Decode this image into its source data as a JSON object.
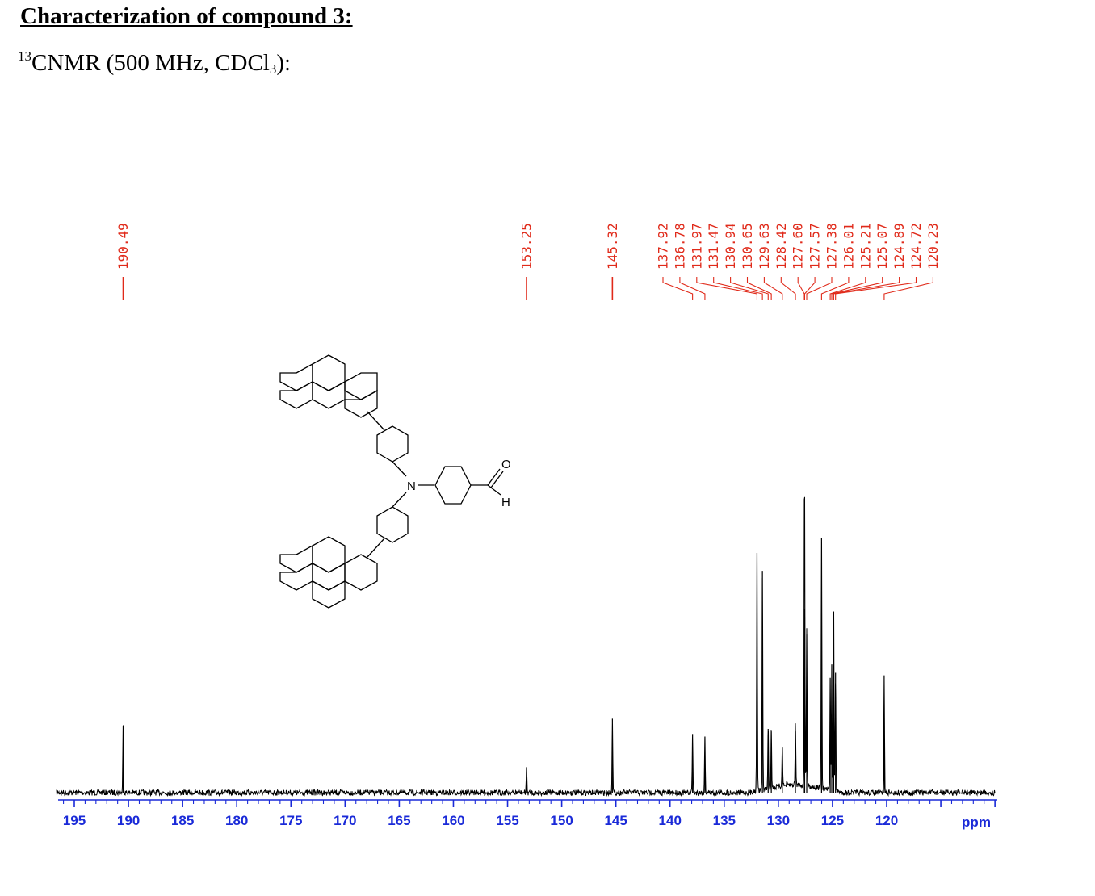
{
  "header": {
    "title": "Characterization of compound 3:",
    "nmr_prefix": "13",
    "nmr_main": "CNMR (500 MHz, CDCl",
    "nmr_sub": "3",
    "nmr_suffix": "):"
  },
  "molecule": {
    "atom_N": "N",
    "atom_O": "O",
    "atom_H": "H"
  },
  "colors": {
    "spectrum": "#000000",
    "peak_labels": "#e02a1a",
    "axis": "#1a2ad8"
  },
  "chart_data": {
    "type": "line",
    "title": "",
    "xlabel": "ppm",
    "ylabel": "",
    "x_axis_reversed": true,
    "xlim": [
      196,
      109
    ],
    "x_ticks": [
      195,
      190,
      185,
      180,
      175,
      170,
      165,
      160,
      155,
      150,
      145,
      140,
      135,
      130,
      125,
      120
    ],
    "x_tick_labels": [
      "195",
      "190",
      "185",
      "180",
      "175",
      "170",
      "165",
      "160",
      "155",
      "150",
      "145",
      "140",
      "135",
      "130",
      "125",
      "120"
    ],
    "unit_label": "ppm",
    "peak_label_strings": [
      "190.49",
      "153.25",
      "145.32",
      "137.92",
      "136.78",
      "131.97",
      "131.47",
      "130.94",
      "130.65",
      "129.63",
      "128.42",
      "127.60",
      "127.57",
      "127.38",
      "126.01",
      "125.21",
      "125.07",
      "124.89",
      "124.72",
      "120.23"
    ],
    "peaks": [
      {
        "ppm": 190.49,
        "intensity": 0.26
      },
      {
        "ppm": 153.25,
        "intensity": 0.1
      },
      {
        "ppm": 145.32,
        "intensity": 0.29
      },
      {
        "ppm": 137.92,
        "intensity": 0.23
      },
      {
        "ppm": 136.78,
        "intensity": 0.22
      },
      {
        "ppm": 131.97,
        "intensity": 0.94
      },
      {
        "ppm": 131.47,
        "intensity": 0.87
      },
      {
        "ppm": 130.94,
        "intensity": 0.25
      },
      {
        "ppm": 130.65,
        "intensity": 0.24
      },
      {
        "ppm": 129.63,
        "intensity": 0.17
      },
      {
        "ppm": 128.42,
        "intensity": 0.24
      },
      {
        "ppm": 127.6,
        "intensity": 0.72
      },
      {
        "ppm": 127.57,
        "intensity": 0.69
      },
      {
        "ppm": 127.38,
        "intensity": 0.62
      },
      {
        "ppm": 126.01,
        "intensity": 1.0
      },
      {
        "ppm": 125.21,
        "intensity": 0.45
      },
      {
        "ppm": 125.07,
        "intensity": 0.5
      },
      {
        "ppm": 124.89,
        "intensity": 0.71
      },
      {
        "ppm": 124.72,
        "intensity": 0.47
      },
      {
        "ppm": 120.23,
        "intensity": 0.46
      }
    ]
  }
}
